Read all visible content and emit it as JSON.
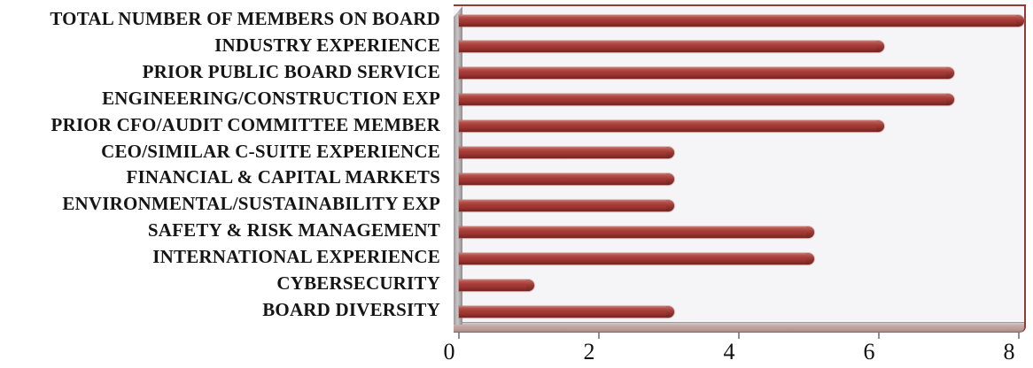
{
  "chart_data": {
    "type": "bar",
    "orientation": "horizontal",
    "title": "",
    "xlabel": "",
    "ylabel": "",
    "categories": [
      "TOTAL NUMBER OF MEMBERS ON BOARD",
      "INDUSTRY EXPERIENCE",
      "PRIOR PUBLIC BOARD SERVICE",
      "ENGINEERING/CONSTRUCTION EXP",
      "PRIOR CFO/AUDIT COMMITTEE MEMBER",
      "CEO/SIMILAR C-SUITE EXPERIENCE",
      "FINANCIAL & CAPITAL MARKETS",
      "ENVIRONMENTAL/SUSTAINABILITY EXP",
      "SAFETY & RISK MANAGEMENT",
      "INTERNATIONAL EXPERIENCE",
      "CYBERSECURITY",
      "BOARD DIVERSITY"
    ],
    "values": [
      8,
      6,
      7,
      7,
      6,
      3,
      3,
      3,
      5,
      5,
      1,
      3
    ],
    "x_ticks": [
      "0",
      "2",
      "4",
      "6",
      "8"
    ],
    "xlim": [
      0,
      8
    ],
    "grid": false,
    "legend": "none",
    "style": "3d-cylinder",
    "colors": {
      "bar_main": "#A03A36",
      "bar_highlight": "#C98078",
      "bar_shadow": "#76241F",
      "plot_background": "#F5F4F6",
      "plot_border": "#8F3C38",
      "side_wall": "#AAA6A8",
      "floor_band": "#C3A8A5",
      "label_text": "#151515"
    }
  }
}
